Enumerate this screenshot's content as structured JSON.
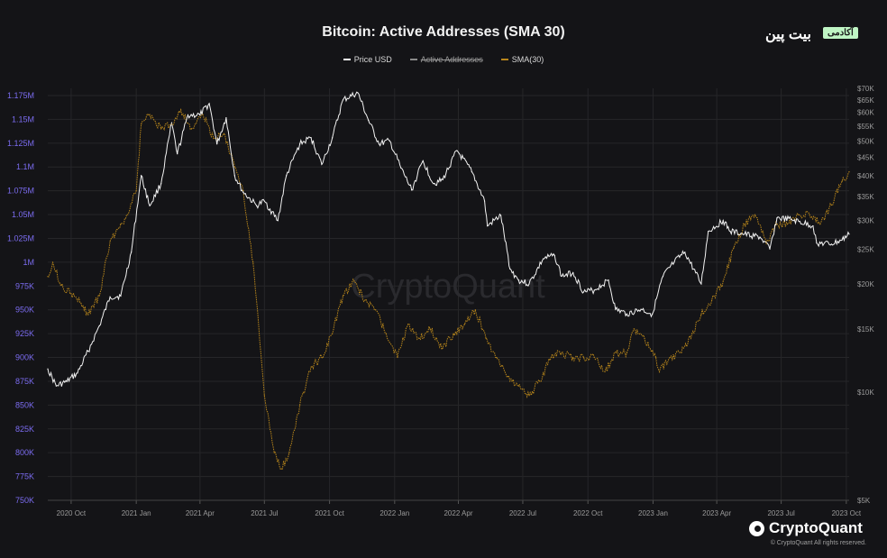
{
  "title": "Bitcoin: Active Addresses (SMA 30)",
  "brand": {
    "text": "بیت پین",
    "badge": "آکادمی"
  },
  "legend": [
    {
      "label": "Price USD",
      "color": "#ffffff",
      "hidden": false
    },
    {
      "label": "Active Addresses",
      "color": "#8a8a8a",
      "hidden": true
    },
    {
      "label": "SMA(30)",
      "color": "#b8861b",
      "hidden": false
    }
  ],
  "watermark": "CryptoQuant",
  "footer": {
    "logo": "CryptoQuant",
    "copyright": "© CryptoQuant All rights reserved."
  },
  "colors": {
    "background": "#141417",
    "price": "#ffffff",
    "sma": "#b8861b",
    "left_axis": "#7b6cf0",
    "grid": "#262629"
  },
  "chart_data": {
    "type": "line",
    "title": "Bitcoin: Active Addresses (SMA 30)",
    "xlabel": "",
    "ylabel": "",
    "grid": true,
    "legend_position": "top-center",
    "x_ticks": [
      "2020 Oct",
      "2021 Jan",
      "2021 Apr",
      "2021 Jul",
      "2021 Oct",
      "2022 Jan",
      "2022 Apr",
      "2022 Jul",
      "2022 Oct",
      "2023 Jan",
      "2023 Apr",
      "2023 Jul",
      "2023 Oct"
    ],
    "left_axis": {
      "ticks": [
        "1.175M",
        "1.15M",
        "1.125M",
        "1.1M",
        "1.075M",
        "1.05M",
        "1.025M",
        "1M",
        "975K",
        "950K",
        "925K",
        "900K",
        "875K",
        "850K",
        "825K",
        "800K",
        "775K",
        "750K"
      ],
      "range": [
        750000,
        1175000
      ]
    },
    "right_axis": {
      "scale": "log",
      "ticks": [
        "$70K",
        "$65K",
        "$60K",
        "$55K",
        "$50K",
        "$45K",
        "$40K",
        "$35K",
        "$30K",
        "$25K",
        "$20K",
        "$15K",
        "$10K",
        "$5K"
      ],
      "range": [
        5000,
        70000
      ]
    },
    "x_range": [
      "2020-08-29",
      "2023-10-05"
    ],
    "series": [
      {
        "name": "Price USD",
        "axis": "right",
        "points": [
          [
            "2020-08-29",
            11600
          ],
          [
            "2020-09-10",
            10400
          ],
          [
            "2020-09-25",
            10700
          ],
          [
            "2020-10-10",
            11300
          ],
          [
            "2020-10-25",
            13000
          ],
          [
            "2020-11-10",
            15300
          ],
          [
            "2020-11-25",
            18400
          ],
          [
            "2020-12-10",
            18500
          ],
          [
            "2020-12-25",
            24500
          ],
          [
            "2021-01-08",
            40000
          ],
          [
            "2021-01-20",
            33000
          ],
          [
            "2021-02-05",
            38000
          ],
          [
            "2021-02-20",
            56000
          ],
          [
            "2021-02-28",
            46000
          ],
          [
            "2021-03-15",
            59000
          ],
          [
            "2021-04-01",
            59000
          ],
          [
            "2021-04-14",
            63500
          ],
          [
            "2021-04-25",
            49000
          ],
          [
            "2021-05-08",
            58000
          ],
          [
            "2021-05-20",
            40000
          ],
          [
            "2021-06-01",
            36000
          ],
          [
            "2021-06-20",
            33000
          ],
          [
            "2021-07-01",
            34000
          ],
          [
            "2021-07-20",
            30000
          ],
          [
            "2021-08-01",
            40000
          ],
          [
            "2021-08-20",
            49000
          ],
          [
            "2021-09-05",
            51000
          ],
          [
            "2021-09-20",
            43000
          ],
          [
            "2021-10-05",
            51000
          ],
          [
            "2021-10-20",
            65000
          ],
          [
            "2021-11-10",
            68000
          ],
          [
            "2021-11-25",
            57000
          ],
          [
            "2021-12-10",
            49000
          ],
          [
            "2021-12-25",
            50000
          ],
          [
            "2022-01-10",
            42000
          ],
          [
            "2022-01-25",
            36500
          ],
          [
            "2022-02-10",
            44000
          ],
          [
            "2022-02-25",
            38000
          ],
          [
            "2022-03-10",
            39000
          ],
          [
            "2022-03-30",
            47000
          ],
          [
            "2022-04-20",
            41000
          ],
          [
            "2022-05-08",
            34000
          ],
          [
            "2022-05-12",
            29000
          ],
          [
            "2022-05-31",
            31000
          ],
          [
            "2022-06-13",
            22000
          ],
          [
            "2022-06-25",
            20500
          ],
          [
            "2022-07-10",
            20000
          ],
          [
            "2022-07-30",
            23500
          ],
          [
            "2022-08-15",
            24000
          ],
          [
            "2022-08-25",
            21000
          ],
          [
            "2022-09-10",
            21500
          ],
          [
            "2022-09-25",
            19000
          ],
          [
            "2022-10-10",
            19200
          ],
          [
            "2022-10-30",
            20500
          ],
          [
            "2022-11-09",
            17000
          ],
          [
            "2022-11-25",
            16500
          ],
          [
            "2022-12-15",
            17000
          ],
          [
            "2022-12-31",
            16500
          ],
          [
            "2023-01-15",
            21000
          ],
          [
            "2023-01-31",
            23000
          ],
          [
            "2023-02-15",
            24500
          ],
          [
            "2023-03-10",
            20000
          ],
          [
            "2023-03-20",
            28000
          ],
          [
            "2023-04-10",
            30000
          ],
          [
            "2023-04-20",
            28000
          ],
          [
            "2023-05-10",
            27500
          ],
          [
            "2023-06-01",
            27000
          ],
          [
            "2023-06-15",
            25000
          ],
          [
            "2023-06-25",
            30500
          ],
          [
            "2023-07-15",
            30200
          ],
          [
            "2023-08-15",
            29000
          ],
          [
            "2023-08-20",
            26000
          ],
          [
            "2023-09-10",
            25800
          ],
          [
            "2023-09-25",
            26500
          ],
          [
            "2023-10-05",
            27500
          ]
        ]
      },
      {
        "name": "SMA(30)",
        "axis": "left",
        "points": [
          [
            "2020-08-29",
            985000
          ],
          [
            "2020-09-05",
            1000000
          ],
          [
            "2020-09-15",
            978000
          ],
          [
            "2020-10-01",
            967000
          ],
          [
            "2020-10-15",
            957000
          ],
          [
            "2020-10-25",
            945000
          ],
          [
            "2020-11-10",
            965000
          ],
          [
            "2020-11-25",
            1022000
          ],
          [
            "2020-12-10",
            1040000
          ],
          [
            "2020-12-20",
            1050000
          ],
          [
            "2021-01-01",
            1075000
          ],
          [
            "2021-01-08",
            1145000
          ],
          [
            "2021-01-20",
            1155000
          ],
          [
            "2021-02-05",
            1140000
          ],
          [
            "2021-02-20",
            1145000
          ],
          [
            "2021-03-05",
            1160000
          ],
          [
            "2021-03-20",
            1140000
          ],
          [
            "2021-04-05",
            1155000
          ],
          [
            "2021-04-20",
            1130000
          ],
          [
            "2021-05-05",
            1135000
          ],
          [
            "2021-05-20",
            1100000
          ],
          [
            "2021-06-01",
            1075000
          ],
          [
            "2021-06-15",
            1000000
          ],
          [
            "2021-07-01",
            860000
          ],
          [
            "2021-07-15",
            800000
          ],
          [
            "2021-07-25",
            783000
          ],
          [
            "2021-08-05",
            800000
          ],
          [
            "2021-08-20",
            850000
          ],
          [
            "2021-09-05",
            890000
          ],
          [
            "2021-09-20",
            900000
          ],
          [
            "2021-10-05",
            925000
          ],
          [
            "2021-10-20",
            965000
          ],
          [
            "2021-11-05",
            980000
          ],
          [
            "2021-11-20",
            960000
          ],
          [
            "2021-12-05",
            950000
          ],
          [
            "2021-12-20",
            925000
          ],
          [
            "2022-01-05",
            900000
          ],
          [
            "2022-01-20",
            935000
          ],
          [
            "2022-02-05",
            920000
          ],
          [
            "2022-02-20",
            930000
          ],
          [
            "2022-03-10",
            910000
          ],
          [
            "2022-03-25",
            925000
          ],
          [
            "2022-04-10",
            935000
          ],
          [
            "2022-04-25",
            950000
          ],
          [
            "2022-05-10",
            920000
          ],
          [
            "2022-05-25",
            900000
          ],
          [
            "2022-06-10",
            880000
          ],
          [
            "2022-06-25",
            870000
          ],
          [
            "2022-07-10",
            860000
          ],
          [
            "2022-07-25",
            875000
          ],
          [
            "2022-08-10",
            900000
          ],
          [
            "2022-08-25",
            905000
          ],
          [
            "2022-09-10",
            900000
          ],
          [
            "2022-09-25",
            900000
          ],
          [
            "2022-10-10",
            900000
          ],
          [
            "2022-10-25",
            885000
          ],
          [
            "2022-11-10",
            905000
          ],
          [
            "2022-11-25",
            905000
          ],
          [
            "2022-12-05",
            930000
          ],
          [
            "2022-12-20",
            920000
          ],
          [
            "2023-01-05",
            900000
          ],
          [
            "2023-01-10",
            885000
          ],
          [
            "2023-01-25",
            900000
          ],
          [
            "2023-02-10",
            905000
          ],
          [
            "2023-02-25",
            925000
          ],
          [
            "2023-03-10",
            945000
          ],
          [
            "2023-03-25",
            960000
          ],
          [
            "2023-04-10",
            980000
          ],
          [
            "2023-04-25",
            1015000
          ],
          [
            "2023-05-10",
            1040000
          ],
          [
            "2023-05-25",
            1050000
          ],
          [
            "2023-06-10",
            1020000
          ],
          [
            "2023-06-25",
            1040000
          ],
          [
            "2023-07-10",
            1040000
          ],
          [
            "2023-07-25",
            1050000
          ],
          [
            "2023-08-10",
            1050000
          ],
          [
            "2023-08-25",
            1040000
          ],
          [
            "2023-09-10",
            1060000
          ],
          [
            "2023-09-25",
            1085000
          ],
          [
            "2023-10-05",
            1095000
          ]
        ]
      }
    ]
  }
}
